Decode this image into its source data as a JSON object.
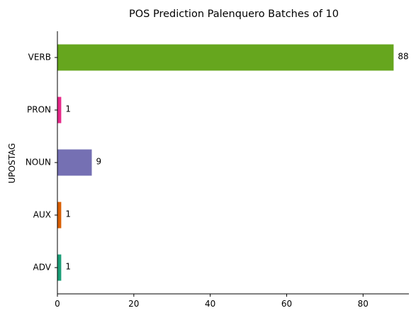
{
  "chart_data": {
    "type": "bar",
    "orientation": "horizontal",
    "title": "POS Prediction Palenquero Batches of 10",
    "xlabel": "",
    "ylabel": "UPOSTAG",
    "categories": [
      "VERB",
      "PRON",
      "NOUN",
      "AUX",
      "ADV"
    ],
    "values": [
      88,
      1,
      9,
      1,
      1
    ],
    "colors": [
      "#66a61e",
      "#e7298a",
      "#7570b3",
      "#d95f02",
      "#1b9e77"
    ],
    "xlim": [
      0,
      92
    ],
    "xticks": [
      0,
      20,
      40,
      60,
      80
    ],
    "data_labels": true,
    "grid": false,
    "legend": "none"
  }
}
